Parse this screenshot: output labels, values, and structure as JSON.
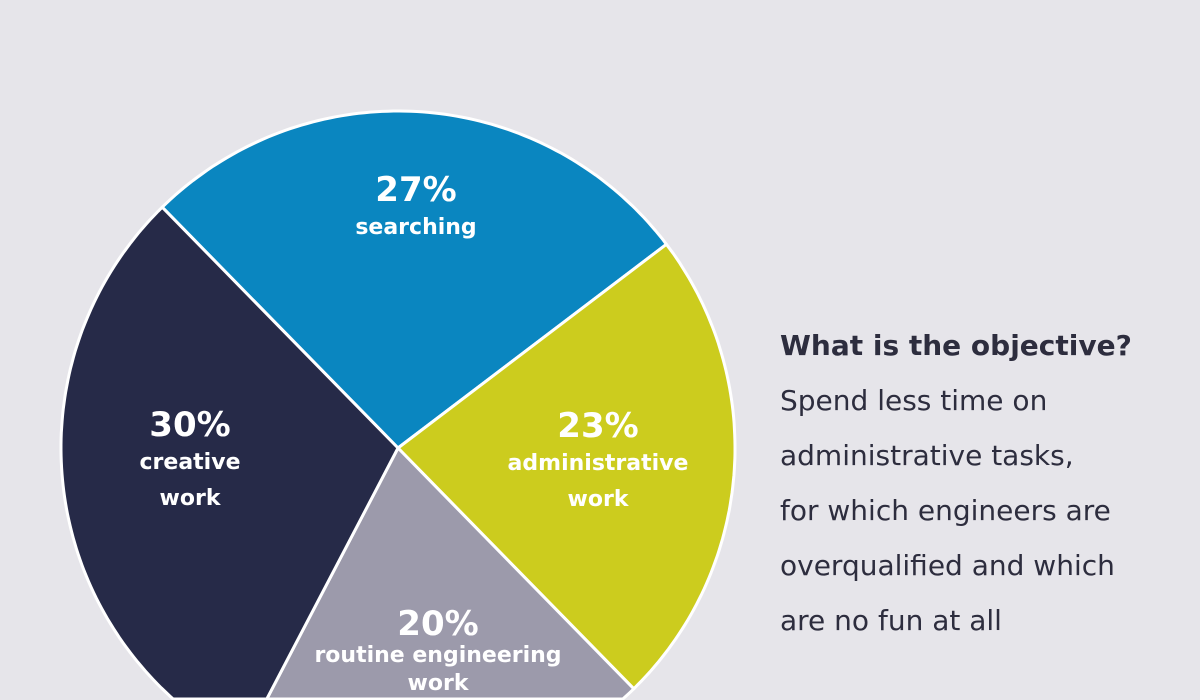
{
  "chart_data": {
    "type": "pie",
    "title": "",
    "slices": [
      {
        "label": "searching",
        "pct_label": "27%",
        "value": 27,
        "color": "#0a86c0",
        "label_lines": [
          "searching"
        ]
      },
      {
        "label": "administrative work",
        "pct_label": "23%",
        "value": 23,
        "color": "#cccc1e",
        "label_lines": [
          "administrative",
          "work"
        ]
      },
      {
        "label": "routine engineering work",
        "pct_label": "20%",
        "value": 20,
        "color": "#9c9aab",
        "label_lines": [
          "routine engineering",
          "work"
        ]
      },
      {
        "label": "creative work",
        "pct_label": "30%",
        "value": 30,
        "color": "#262a48",
        "label_lines": [
          "creative",
          "work"
        ]
      }
    ],
    "start_angle_deg": 315.6
  },
  "side_text": {
    "heading": "What is the objective?",
    "lines": [
      "Spend less time on",
      "administrative tasks,",
      "for which engineers are",
      "overqualified and which",
      "are no fun at all"
    ]
  }
}
